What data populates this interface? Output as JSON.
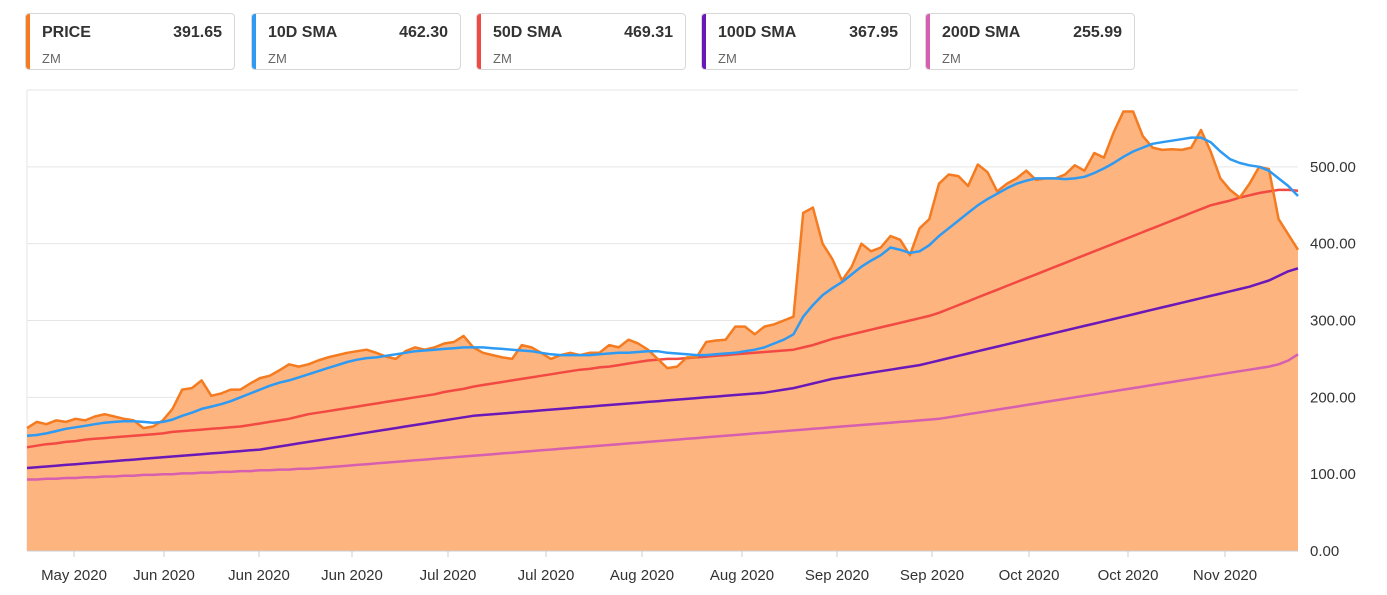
{
  "legend": [
    {
      "name": "PRICE",
      "value": "391.65",
      "symbol": "ZM",
      "color": "#f47b20"
    },
    {
      "name": "10D SMA",
      "value": "462.30",
      "symbol": "ZM",
      "color": "#2e9af2"
    },
    {
      "name": "50D SMA",
      "value": "469.31",
      "symbol": "ZM",
      "color": "#f24a42"
    },
    {
      "name": "100D SMA",
      "value": "367.95",
      "symbol": "ZM",
      "color": "#6a18b8"
    },
    {
      "name": "200D SMA",
      "value": "255.99",
      "symbol": "ZM",
      "color": "#d65fb0"
    }
  ],
  "chart_data": {
    "type": "area",
    "ylim": [
      0,
      600
    ],
    "yticks": [
      "0.00",
      "100.00",
      "200.00",
      "300.00",
      "400.00",
      "500.00"
    ],
    "xticks": [
      "May 2020",
      "Jun 2020",
      "Jun 2020",
      "Jun 2020",
      "Jul 2020",
      "Jul 2020",
      "Aug 2020",
      "Aug 2020",
      "Sep 2020",
      "Sep 2020",
      "Oct 2020",
      "Oct 2020",
      "Nov 2020"
    ],
    "grid": true,
    "series": [
      {
        "name": "PRICE",
        "color": "#f47b20",
        "fill": "#fdb47f",
        "values": [
          160,
          168,
          165,
          170,
          168,
          172,
          170,
          175,
          178,
          175,
          172,
          170,
          160,
          162,
          170,
          185,
          210,
          212,
          222,
          202,
          205,
          210,
          210,
          218,
          225,
          228,
          235,
          243,
          240,
          243,
          248,
          252,
          255,
          258,
          260,
          262,
          258,
          253,
          250,
          260,
          265,
          262,
          265,
          270,
          272,
          280,
          265,
          258,
          255,
          252,
          250,
          268,
          265,
          258,
          250,
          255,
          258,
          255,
          258,
          258,
          268,
          265,
          275,
          270,
          262,
          250,
          238,
          240,
          252,
          252,
          272,
          274,
          275,
          292,
          292,
          282,
          292,
          295,
          300,
          305,
          440,
          447,
          400,
          380,
          352,
          370,
          400,
          390,
          395,
          410,
          405,
          385,
          420,
          432,
          478,
          490,
          488,
          475,
          503,
          493,
          468,
          478,
          485,
          495,
          483,
          485,
          485,
          490,
          502,
          495,
          518,
          512,
          545,
          572,
          572,
          540,
          525,
          522,
          523,
          522,
          525,
          548,
          520,
          485,
          470,
          460,
          478,
          500,
          497,
          432,
          412,
          392
        ]
      },
      {
        "name": "10D SMA",
        "color": "#2e9af2",
        "values": [
          150,
          151,
          153,
          156,
          159,
          161,
          163,
          165,
          167,
          168,
          169,
          169,
          168,
          167,
          168,
          171,
          176,
          180,
          185,
          188,
          191,
          195,
          200,
          205,
          210,
          215,
          219,
          222,
          226,
          230,
          234,
          238,
          242,
          246,
          249,
          251,
          252,
          254,
          256,
          258,
          260,
          261,
          262,
          263,
          264,
          265,
          265,
          265,
          264,
          263,
          262,
          261,
          260,
          258,
          256,
          255,
          255,
          255,
          255,
          256,
          257,
          258,
          258,
          259,
          260,
          260,
          258,
          257,
          256,
          255,
          255,
          256,
          257,
          258,
          260,
          262,
          265,
          270,
          275,
          282,
          305,
          320,
          333,
          342,
          350,
          360,
          370,
          378,
          385,
          395,
          392,
          388,
          390,
          398,
          410,
          420,
          430,
          440,
          450,
          458,
          465,
          472,
          478,
          482,
          485,
          485,
          485,
          484,
          485,
          487,
          492,
          498,
          505,
          513,
          520,
          525,
          530,
          532,
          534,
          536,
          538,
          538,
          532,
          520,
          510,
          505,
          502,
          500,
          495,
          485,
          475,
          462
        ]
      },
      {
        "name": "50D SMA",
        "color": "#f24a42",
        "values": [
          135,
          137,
          139,
          140,
          142,
          143,
          145,
          146,
          147,
          148,
          149,
          150,
          151,
          152,
          153,
          155,
          156,
          157,
          158,
          159,
          160,
          161,
          162,
          164,
          166,
          168,
          170,
          172,
          175,
          178,
          180,
          182,
          184,
          186,
          188,
          190,
          192,
          194,
          196,
          198,
          200,
          202,
          204,
          207,
          209,
          211,
          214,
          216,
          218,
          220,
          222,
          224,
          226,
          228,
          230,
          232,
          234,
          236,
          237,
          239,
          240,
          242,
          244,
          246,
          248,
          249,
          250,
          250,
          251,
          252,
          253,
          254,
          255,
          256,
          257,
          258,
          259,
          260,
          261,
          262,
          265,
          268,
          272,
          276,
          279,
          282,
          285,
          288,
          291,
          294,
          297,
          300,
          303,
          306,
          310,
          315,
          320,
          325,
          330,
          335,
          340,
          345,
          350,
          355,
          360,
          365,
          370,
          375,
          380,
          385,
          390,
          395,
          400,
          405,
          410,
          415,
          420,
          425,
          430,
          435,
          440,
          445,
          450,
          453,
          456,
          460,
          463,
          466,
          468,
          470,
          470,
          469
        ]
      },
      {
        "name": "100D SMA",
        "color": "#6a18b8",
        "values": [
          108,
          109,
          110,
          111,
          112,
          113,
          114,
          115,
          116,
          117,
          118,
          119,
          120,
          121,
          122,
          123,
          124,
          125,
          126,
          127,
          128,
          129,
          130,
          131,
          132,
          134,
          136,
          138,
          140,
          142,
          144,
          146,
          148,
          150,
          152,
          154,
          156,
          158,
          160,
          162,
          164,
          166,
          168,
          170,
          172,
          174,
          176,
          177,
          178,
          179,
          180,
          181,
          182,
          183,
          184,
          185,
          186,
          187,
          188,
          189,
          190,
          191,
          192,
          193,
          194,
          195,
          196,
          197,
          198,
          199,
          200,
          201,
          202,
          203,
          204,
          205,
          206,
          208,
          210,
          212,
          215,
          218,
          221,
          224,
          226,
          228,
          230,
          232,
          234,
          236,
          238,
          240,
          242,
          245,
          248,
          251,
          254,
          257,
          260,
          263,
          266,
          269,
          272,
          275,
          278,
          281,
          284,
          287,
          290,
          293,
          296,
          299,
          302,
          305,
          308,
          311,
          314,
          317,
          320,
          323,
          326,
          329,
          332,
          335,
          338,
          341,
          344,
          348,
          352,
          358,
          364,
          368
        ]
      },
      {
        "name": "200D SMA",
        "color": "#d65fb0",
        "values": [
          93,
          93,
          94,
          94,
          95,
          95,
          96,
          96,
          97,
          97,
          98,
          98,
          99,
          99,
          100,
          100,
          101,
          101,
          102,
          102,
          103,
          103,
          104,
          104,
          105,
          105,
          106,
          106,
          107,
          107,
          108,
          109,
          110,
          111,
          112,
          113,
          114,
          115,
          116,
          117,
          118,
          119,
          120,
          121,
          122,
          123,
          124,
          125,
          126,
          127,
          128,
          129,
          130,
          131,
          132,
          133,
          134,
          135,
          136,
          137,
          138,
          139,
          140,
          141,
          142,
          143,
          144,
          145,
          146,
          147,
          148,
          149,
          150,
          151,
          152,
          153,
          154,
          155,
          156,
          157,
          158,
          159,
          160,
          161,
          162,
          163,
          164,
          165,
          166,
          167,
          168,
          169,
          170,
          171,
          172,
          174,
          176,
          178,
          180,
          182,
          184,
          186,
          188,
          190,
          192,
          194,
          196,
          198,
          200,
          202,
          204,
          206,
          208,
          210,
          212,
          214,
          216,
          218,
          220,
          222,
          224,
          226,
          228,
          230,
          232,
          234,
          236,
          238,
          240,
          243,
          248,
          256
        ]
      }
    ]
  }
}
